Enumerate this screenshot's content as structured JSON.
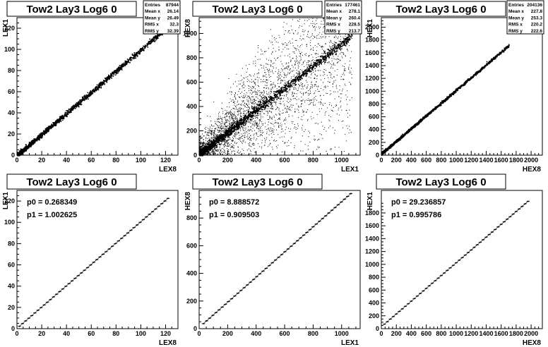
{
  "chart_data": [
    {
      "type": "scatter",
      "title": "Tow2 Lay3 Log6 0",
      "xlabel": "LEX8",
      "ylabel": "LEX1",
      "xlim": [
        0,
        130
      ],
      "ylim": [
        0,
        130
      ],
      "xticks": [
        0,
        20,
        40,
        60,
        80,
        100,
        120
      ],
      "yticks": [
        0,
        20,
        40,
        60,
        80,
        100,
        120
      ],
      "stats": [
        {
          "label": "Entries",
          "value": "87944"
        },
        {
          "label": "Mean x",
          "value": "26.14"
        },
        {
          "label": "Mean y",
          "value": "26.49"
        },
        {
          "label": "RMS x",
          "value": "32.3"
        },
        {
          "label": "RMS y",
          "value": "32.39"
        }
      ],
      "trend": {
        "slope": 1.0,
        "intercept": 0,
        "x_range": [
          0,
          122
        ]
      },
      "spread": 1.2,
      "outliers": 0
    },
    {
      "type": "scatter",
      "title": "Tow2 Lay3 Log6 0",
      "xlabel": "LEX1",
      "ylabel": "HEX8",
      "xlim": [
        0,
        1130
      ],
      "ylim": [
        0,
        1130
      ],
      "xticks": [
        0,
        200,
        400,
        600,
        800,
        1000
      ],
      "yticks": [
        0,
        200,
        400,
        600,
        800,
        1000
      ],
      "stats": [
        {
          "label": "Entries",
          "value": "177461"
        },
        {
          "label": "Mean x",
          "value": "278.1"
        },
        {
          "label": "Mean y",
          "value": "260.4"
        },
        {
          "label": "RMS x",
          "value": "228.5"
        },
        {
          "label": "RMS y",
          "value": "213.7"
        }
      ],
      "trend": {
        "slope": 0.91,
        "intercept": 9,
        "x_range": [
          0,
          1070
        ]
      },
      "spread": 18,
      "outliers": 3500
    },
    {
      "type": "scatter",
      "title": "Tow2 Lay3 Log6 0",
      "xlabel": "HEX8",
      "ylabel": "HEX1",
      "xlim": [
        0,
        2150
      ],
      "ylim": [
        0,
        2150
      ],
      "xticks": [
        0,
        200,
        400,
        600,
        800,
        1000,
        1200,
        1400,
        1600,
        1800,
        2000
      ],
      "xticklabels": [
        "0",
        "200",
        "400",
        "600",
        "800",
        "1000",
        "1200",
        "1400",
        "1600",
        "1800",
        "2000"
      ],
      "yticks": [
        0,
        200,
        400,
        600,
        800,
        1000,
        1200,
        1400,
        1600,
        1800,
        2000
      ],
      "stats": [
        {
          "label": "Entries",
          "value": "204136"
        },
        {
          "label": "Mean x",
          "value": "227.8"
        },
        {
          "label": "Mean y",
          "value": "253.3"
        },
        {
          "label": "RMS x",
          "value": "220.2"
        },
        {
          "label": "RMS y",
          "value": "222.6"
        }
      ],
      "trend": {
        "slope": 0.996,
        "intercept": 29,
        "x_range": [
          0,
          1700
        ]
      },
      "spread": 10,
      "outliers": 0
    },
    {
      "type": "line",
      "title": "Tow2 Lay3 Log6 0",
      "xlabel": "LEX8",
      "ylabel": "LEX1",
      "xlim": [
        0,
        130
      ],
      "ylim": [
        0,
        130
      ],
      "xticks": [
        0,
        20,
        40,
        60,
        80,
        100,
        120
      ],
      "yticks": [
        0,
        20,
        40,
        60,
        80,
        100,
        120
      ],
      "fit": [
        {
          "label": "p0",
          "value": "0.268349"
        },
        {
          "label": "p1",
          "value": "1.002625"
        }
      ],
      "profile": {
        "x_start": 2,
        "x_end": 122,
        "step": 2.5,
        "p0": 0.268349,
        "p1": 1.002625
      }
    },
    {
      "type": "line",
      "title": "Tow2 Lay3 Log6 0",
      "xlabel": "LEX1",
      "ylabel": "HEX8",
      "xlim": [
        0,
        1130
      ],
      "ylim": [
        0,
        1000
      ],
      "xticks": [
        0,
        200,
        400,
        600,
        800,
        1000
      ],
      "yticks": [
        0,
        200,
        400,
        600,
        800
      ],
      "fit": [
        {
          "label": "p0",
          "value": "8.888572"
        },
        {
          "label": "p1",
          "value": "0.909503"
        }
      ],
      "profile": {
        "x_start": 30,
        "x_end": 1070,
        "step": 22,
        "p0": 8.888572,
        "p1": 0.909503
      }
    },
    {
      "type": "line",
      "title": "Tow2 Lay3 Log6 0",
      "xlabel": "HEX8",
      "ylabel": "HEX1",
      "xlim": [
        0,
        2150
      ],
      "ylim": [
        0,
        2150
      ],
      "xticks": [
        0,
        200,
        400,
        600,
        800,
        1000,
        1200,
        1400,
        1600,
        1800,
        2000
      ],
      "xticklabels": [
        "0",
        "200",
        "400",
        "600",
        "800",
        "1000",
        "1200",
        "1400",
        "1600",
        "1800",
        "2000"
      ],
      "yticks": [
        0,
        200,
        400,
        600,
        800,
        1000,
        1200,
        1400,
        1600,
        1800
      ],
      "fit": [
        {
          "label": "p0",
          "value": "29.236857"
        },
        {
          "label": "p1",
          "value": "0.995786"
        }
      ],
      "profile": {
        "x_start": 40,
        "x_end": 1960,
        "step": 40,
        "p0": 29.236857,
        "p1": 0.995786
      }
    }
  ]
}
